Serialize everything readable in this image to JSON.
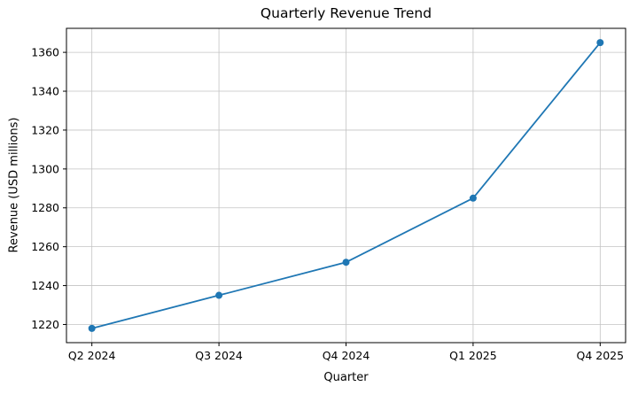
{
  "chart_data": {
    "type": "line",
    "title": "Quarterly Revenue Trend",
    "xlabel": "Quarter",
    "ylabel": "Revenue (USD millions)",
    "categories": [
      "Q2 2024",
      "Q3 2024",
      "Q4 2024",
      "Q1 2025",
      "Q4 2025"
    ],
    "values": [
      1218,
      1235,
      1252,
      1285,
      1365
    ],
    "yticks": [
      1220,
      1240,
      1260,
      1280,
      1300,
      1320,
      1340,
      1360
    ],
    "ylim": [
      1210.65,
      1372.35
    ],
    "grid": true,
    "legend": "none",
    "line_color": "#1f77b4",
    "marker": "circle",
    "grid_color": "#c3c3c3",
    "axis_color": "#000000"
  }
}
